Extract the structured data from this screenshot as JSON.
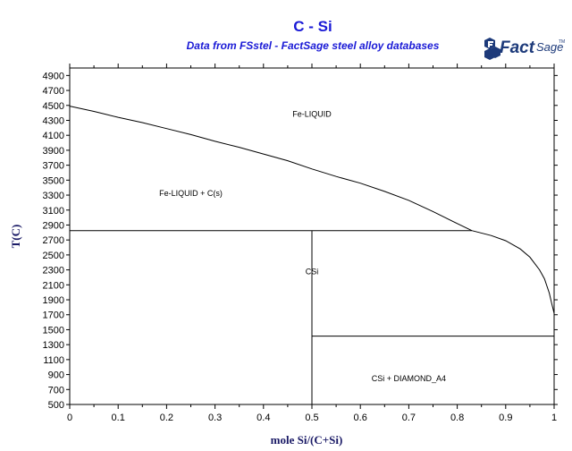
{
  "colors": {
    "title": "#1a1ad6",
    "logo": "#1d3a7a",
    "axis_label": "#1a1a66",
    "line": "#000000"
  },
  "logo": {
    "icon": "factsage-logo-icon",
    "text_fact": "Fact",
    "text_sage": "Sage",
    "tm": "TM"
  },
  "chart_data": {
    "type": "line",
    "title": "C - Si",
    "subtitle": "Data from FSstel - FactSage steel alloy databases",
    "xlabel": "mole Si/(C+Si)",
    "ylabel": "T(C)",
    "xlim": [
      0,
      1
    ],
    "ylim": [
      500,
      5000
    ],
    "grid": false,
    "x_ticks": [
      "0",
      "0.1",
      "0.2",
      "0.3",
      "0.4",
      "0.5",
      "0.6",
      "0.7",
      "0.8",
      "0.9",
      "1"
    ],
    "y_ticks": [
      "500",
      "700",
      "900",
      "1100",
      "1300",
      "1500",
      "1700",
      "1900",
      "2100",
      "2300",
      "2500",
      "2700",
      "2900",
      "3100",
      "3300",
      "3500",
      "3700",
      "3900",
      "4100",
      "4300",
      "4500",
      "4700",
      "4900"
    ],
    "series": [
      {
        "role": "liquidus",
        "x": [
          0,
          0.05,
          0.1,
          0.15,
          0.2,
          0.25,
          0.3,
          0.35,
          0.4,
          0.45,
          0.5,
          0.55,
          0.6,
          0.65,
          0.7,
          0.75,
          0.8,
          0.83,
          0.87,
          0.9,
          0.93,
          0.95,
          0.97,
          0.98,
          0.99,
          0.995,
          1.0
        ],
        "y": [
          4490,
          4420,
          4340,
          4270,
          4190,
          4110,
          4020,
          3940,
          3850,
          3760,
          3650,
          3550,
          3460,
          3350,
          3230,
          3080,
          2920,
          2825,
          2760,
          2690,
          2580,
          2470,
          2300,
          2180,
          1990,
          1850,
          1720
        ]
      },
      {
        "role": "eutectic-line",
        "x": [
          0,
          0.83
        ],
        "y": [
          2825,
          2825
        ]
      },
      {
        "role": "csi-composition",
        "x": [
          0.5,
          0.5
        ],
        "y": [
          500,
          2825
        ]
      },
      {
        "role": "csi-diamond-boundary",
        "x": [
          0.5,
          1.0
        ],
        "y": [
          1414,
          1414
        ]
      }
    ],
    "annotations": [
      {
        "text": "Fe-LIQUID",
        "x": 0.5,
        "y": 4350
      },
      {
        "text": "Fe-LIQUID + C(s)",
        "x": 0.25,
        "y": 3290
      },
      {
        "text": "CSi",
        "x": 0.5,
        "y": 2240
      },
      {
        "text": "CSi + DIAMOND_A4",
        "x": 0.7,
        "y": 810
      }
    ]
  }
}
